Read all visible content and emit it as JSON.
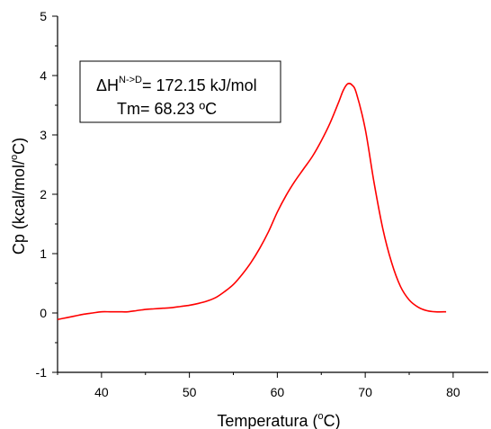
{
  "chart_data": {
    "type": "line",
    "title": "",
    "xlabel": "Temperatura (°C)",
    "xlabel_parts": {
      "before": "Temperatura (",
      "sup": "o",
      "after": "C)"
    },
    "ylabel": "Cp (kcal/mol/°C)",
    "ylabel_parts": {
      "before": "Cp (kcal/mol/",
      "sup": "o",
      "after": "C)"
    },
    "xlim": [
      35,
      84
    ],
    "ylim": [
      -1,
      5
    ],
    "xticks": [
      40,
      50,
      60,
      70,
      80
    ],
    "yticks": [
      -1,
      0,
      1,
      2,
      3,
      4,
      5
    ],
    "grid": false,
    "annotation": {
      "line1": {
        "prefix": "ΔH",
        "sup": "N->D",
        "suffix": "= 172.15 kJ/mol"
      },
      "line2": "Tm= 68.23 ºC"
    },
    "series": [
      {
        "color": "#ff0000",
        "x": [
          35,
          36,
          37,
          38,
          39,
          40,
          41,
          42,
          43,
          44,
          45,
          46,
          47,
          48,
          49,
          50,
          51,
          52,
          53,
          54,
          55,
          56,
          57,
          58,
          59,
          60,
          61,
          62,
          63,
          64,
          65,
          66,
          67,
          67.5,
          68,
          68.5,
          69,
          70,
          71,
          72,
          73,
          74,
          75,
          76,
          77,
          78,
          79.2
        ],
        "y": [
          -0.11,
          -0.08,
          -0.05,
          -0.02,
          0.0,
          0.02,
          0.02,
          0.02,
          0.02,
          0.04,
          0.06,
          0.07,
          0.08,
          0.09,
          0.11,
          0.13,
          0.16,
          0.2,
          0.26,
          0.36,
          0.48,
          0.65,
          0.85,
          1.09,
          1.37,
          1.7,
          1.98,
          2.22,
          2.43,
          2.64,
          2.9,
          3.2,
          3.56,
          3.75,
          3.86,
          3.84,
          3.7,
          3.1,
          2.2,
          1.42,
          0.85,
          0.45,
          0.22,
          0.1,
          0.04,
          0.02,
          0.02
        ]
      }
    ]
  }
}
